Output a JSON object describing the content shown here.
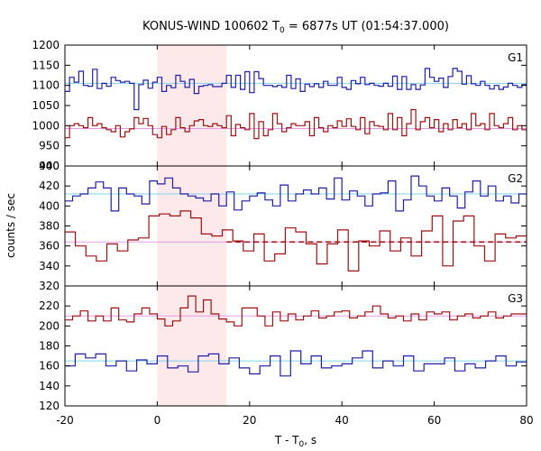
{
  "chart_data": {
    "type": "line",
    "title": "KONUS-WIND 100602 T",
    "title_sub": "0",
    "title_rest": " = 6877s UT (01:54:37.000)",
    "xlabel": "T - T",
    "xlabel_sub": "0",
    "xlabel_rest": ", s",
    "ylabel": "counts / sec",
    "xlim": [
      -20,
      80
    ],
    "xticks": [
      -20,
      0,
      20,
      40,
      60,
      80
    ],
    "highlight_interval": [
      0,
      15
    ],
    "colors": {
      "blue": "#1f1fa8",
      "red": "#a01010",
      "cyan": "#7fd4f0",
      "pink": "#e79be7",
      "highlight": "#fde8ea"
    },
    "bin_width": 2.944,
    "bin_start": -20,
    "panels": [
      {
        "label": "G1",
        "ylim": [
          900,
          1200
        ],
        "yticks": [
          900,
          950,
          1000,
          1050,
          1100,
          1150,
          1200
        ],
        "series": [
          {
            "color": "blue",
            "values": [
              1085,
              1120,
              1108,
              1135,
              1100,
              1098,
              1140,
              1092,
              1105,
              1098,
              1120,
              1112,
              1108,
              1110,
              1105,
              1040,
              1102,
              1113,
              1093,
              1108,
              1120,
              1085,
              1100,
              1094,
              1125,
              1110,
              1095,
              1115,
              1080,
              1098,
              1100,
              1102,
              1097,
              1097,
              1105,
              1125,
              1095,
              1125,
              1090,
              1134,
              1082,
              1134,
              1117,
              1100,
              1100,
              1097,
              1100,
              1095,
              1125,
              1092,
              1116,
              1085,
              1103,
              1097,
              1104,
              1095,
              1110,
              1100,
              1100,
              1120,
              1095,
              1090,
              1112,
              1104,
              1120,
              1102,
              1105,
              1100,
              1098,
              1105,
              1098,
              1123,
              1090,
              1122,
              1090,
              1102,
              1090,
              1101,
              1142,
              1120,
              1110,
              1118,
              1095,
              1122,
              1142,
              1135,
              1103,
              1124,
              1104,
              1100,
              1110,
              1100,
              1091,
              1100,
              1090,
              1096,
              1105,
              1100,
              1095,
              1102
            ]
          },
          {
            "color": "red",
            "values": [
              970,
              1000,
              1005,
              1000,
              995,
              1020,
              1000,
              1005,
              995,
              990,
              985,
              1000,
              972,
              985,
              992,
              1020,
              1005,
              1018,
              1000,
              978,
              970,
              998,
              978,
              990,
              1020,
              995,
              985,
              1000,
              1012,
              1015,
              1000,
              998,
              1005,
              1000,
              995,
              1025,
              975,
              1003,
              995,
              990,
              1030,
              968,
              1010,
              975,
              990,
              1030,
              1005,
              985,
              995,
              1005,
              1000,
              1000,
              1010,
              975,
              1020,
              995,
              985,
              1000,
              995,
              1012,
              998,
              1017,
              998,
              990,
              1020,
              980,
              1010,
              1000,
              998,
              990,
              1030,
              990,
              1020,
              975,
              1005,
              1040,
              990,
              1010,
              1020,
              995,
              1015,
              985,
              1005,
              990,
              1015,
              995,
              1005,
              990,
              1030,
              1000,
              1005,
              990,
              1030,
              1000,
              995,
              1005,
              1020,
              990,
              1000,
              990
            ]
          }
        ],
        "backgrounds": [
          {
            "color": "cyan",
            "value": 1105
          },
          {
            "color": "pink",
            "value": 993
          }
        ]
      },
      {
        "label": "G2",
        "ylim": [
          320,
          440
        ],
        "yticks": [
          320,
          340,
          360,
          380,
          400,
          420,
          440
        ],
        "series": [
          {
            "color": "blue",
            "values": [
              405,
              410,
              412,
              418,
              424,
              418,
              395,
              418,
              412,
              410,
              402,
              425,
              422,
              428,
              418,
              412,
              410,
              408,
              405,
              412,
              400,
              414,
              396,
              405,
              410,
              413,
              406,
              400,
              421,
              405,
              412,
              416,
              412,
              418,
              407,
              428,
              406,
              415,
              410,
              400,
              412,
              413,
              425,
              395,
              406,
              430,
              420,
              410,
              405,
              418,
              410,
              398,
              414,
              425,
              410,
              420,
              405,
              410,
              403,
              412
            ]
          },
          {
            "color": "red",
            "values": [
              374,
              360,
              350,
              345,
              362,
              355,
              366,
              368,
              390,
              392,
              390,
              395,
              388,
              372,
              370,
              376,
              365,
              355,
              372,
              345,
              352,
              378,
              374,
              362,
              342,
              362,
              376,
              335,
              365,
              360,
              375,
              355,
              368,
              350,
              375,
              390,
              340,
              385,
              390,
              360,
              345,
              372,
              368,
              370
            ]
          }
        ],
        "backgrounds": [
          {
            "color": "cyan",
            "value": 412
          },
          {
            "color": "pink",
            "value": 364
          }
        ],
        "dashed": {
          "color": "red",
          "value": 364
        }
      },
      {
        "label": "G3",
        "ylim": [
          120,
          240
        ],
        "yticks": [
          120,
          140,
          160,
          180,
          200,
          220
        ],
        "series": [
          {
            "color": "red",
            "values": [
              206,
              210,
              215,
              205,
              210,
              205,
              218,
              206,
              204,
              212,
              218,
              212,
              207,
              200,
              205,
              218,
              230,
              214,
              226,
              212,
              207,
              204,
              200,
              218,
              218,
              210,
              200,
              214,
              205,
              212,
              206,
              210,
              215,
              208,
              210,
              214,
              215,
              208,
              210,
              214,
              220,
              212,
              208,
              210,
              205,
              212,
              206,
              214,
              212,
              214,
              206,
              210,
              212,
              208,
              210,
              214,
              208,
              210,
              212,
              212
            ]
          },
          {
            "color": "blue",
            "values": [
              160,
              172,
              168,
              172,
              160,
              165,
              155,
              166,
              162,
              170,
              158,
              160,
              154,
              170,
              172,
              162,
              168,
              158,
              152,
              160,
              170,
              150,
              175,
              162,
              170,
              158,
              160,
              162,
              168,
              175,
              158,
              165,
              160,
              170,
              155,
              162,
              162,
              168,
              155,
              162,
              158,
              165,
              170,
              160,
              164
            ]
          }
        ],
        "backgrounds": [
          {
            "color": "pink",
            "value": 210
          },
          {
            "color": "cyan",
            "value": 165
          }
        ]
      }
    ]
  }
}
